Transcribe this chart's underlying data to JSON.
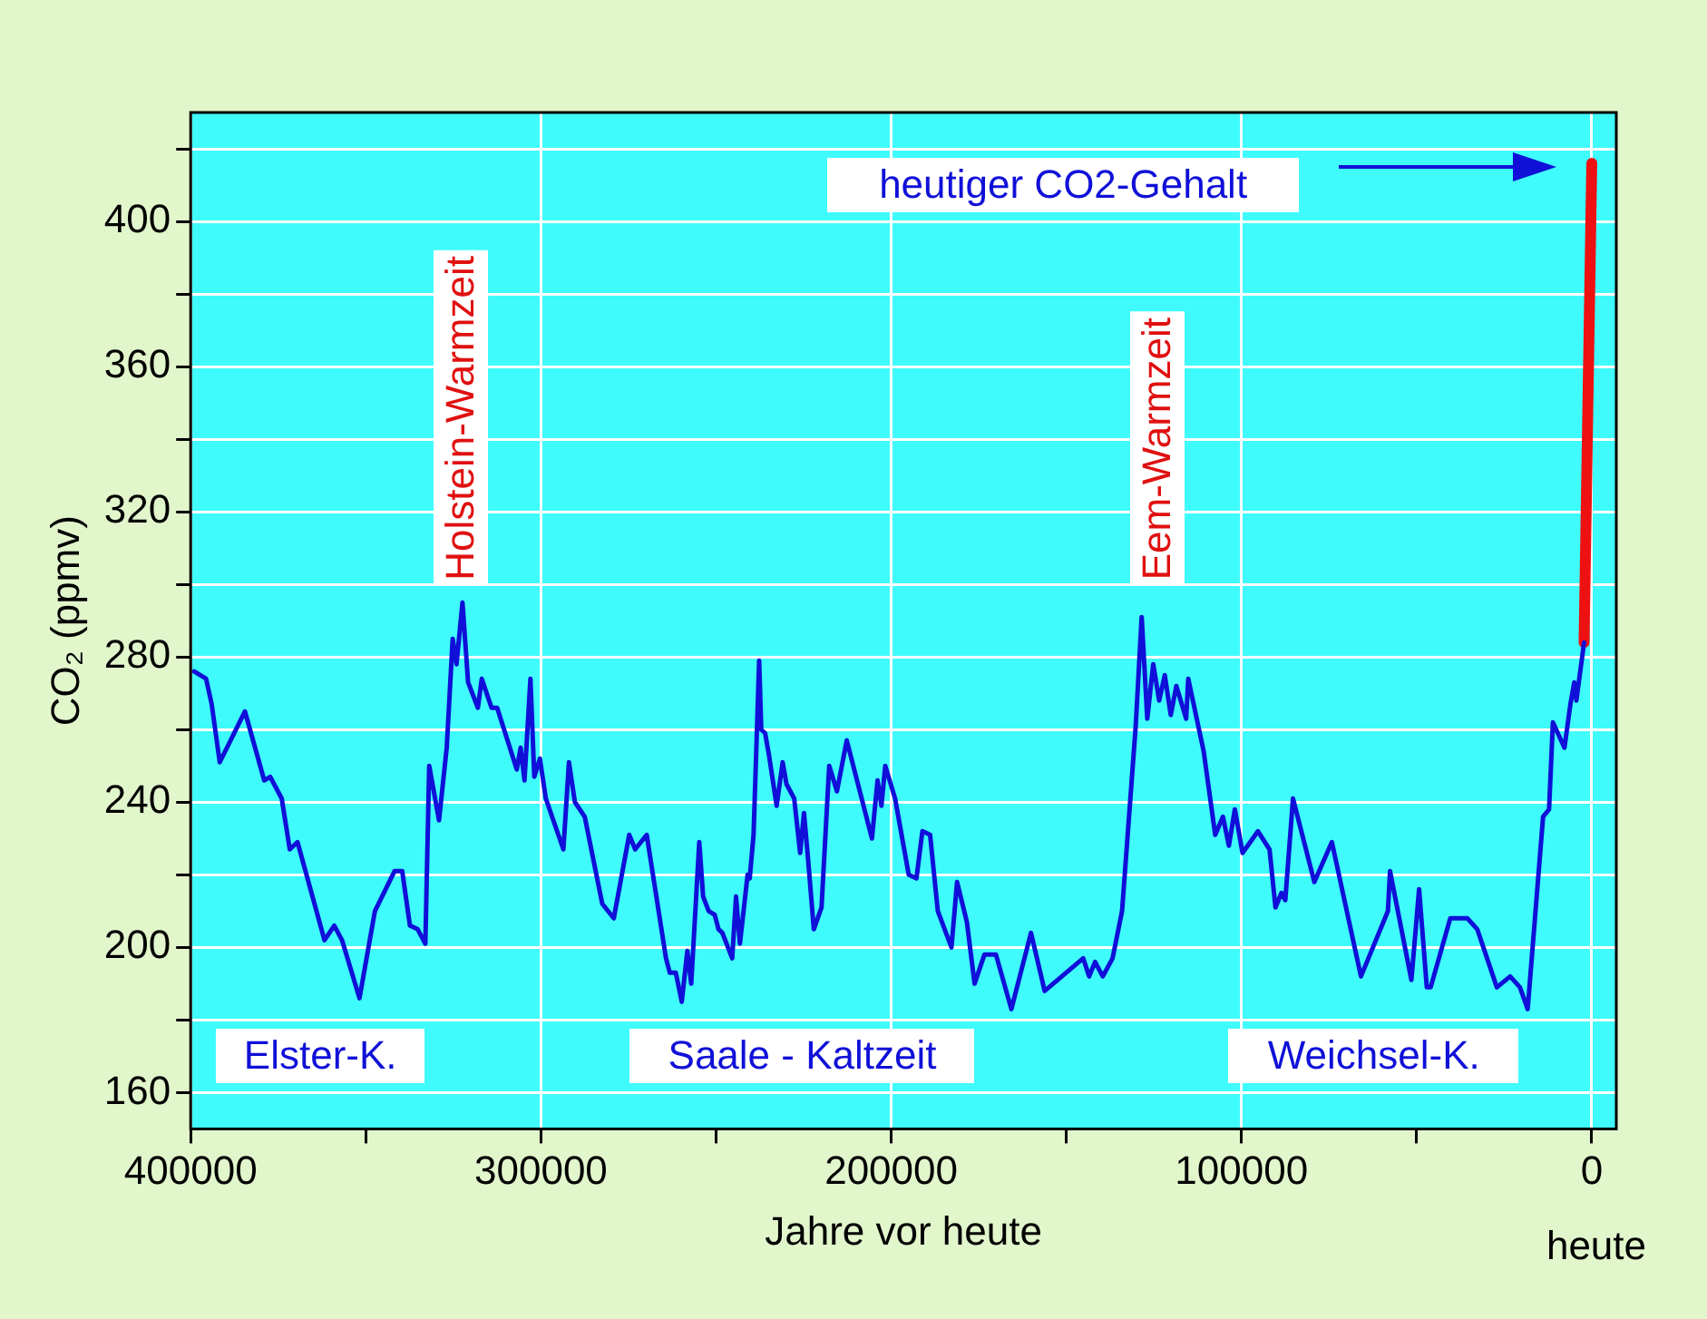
{
  "chart_data": {
    "type": "line",
    "xlabel": "Jahre vor heute",
    "ylabel": "CO₂ (ppmv)",
    "xlim": [
      400000,
      -7000
    ],
    "xticks": [
      400000,
      {
        "value": 350000,
        "label": null
      },
      300000,
      {
        "value": 250000,
        "label": null
      },
      200000,
      {
        "value": 150000,
        "label": null
      },
      100000,
      {
        "value": 50000,
        "label": null
      },
      0
    ],
    "ylim": [
      150,
      430
    ],
    "yticks": [
      160,
      {
        "value": 180,
        "label": null
      },
      200,
      {
        "value": 220,
        "label": null
      },
      240,
      {
        "value": 260,
        "label": null
      },
      280,
      {
        "value": 300,
        "label": null
      },
      320,
      {
        "value": 340,
        "label": null
      },
      360,
      {
        "value": 380,
        "label": null
      },
      400,
      {
        "value": 420,
        "label": null
      }
    ],
    "grid": true,
    "legend": false,
    "marker": "none",
    "line_style": "solid",
    "series": [
      {
        "color": "#1010d8",
        "x": [
          399000,
          395600,
          394000,
          391700,
          384500,
          379000,
          377300,
          374000,
          371700,
          369500,
          361800,
          359000,
          356800,
          351800,
          347400,
          341800,
          339600,
          337400,
          335200,
          333000,
          331900,
          329100,
          326900,
          325200,
          324100,
          322400,
          320800,
          318000,
          316900,
          314100,
          312500,
          306900,
          305800,
          304700,
          303000,
          301900,
          300300,
          298600,
          293600,
          292000,
          290300,
          287500,
          282500,
          279200,
          274800,
          273100,
          269800,
          264300,
          263200,
          261500,
          259800,
          258200,
          257100,
          254800,
          253700,
          252100,
          250400,
          249300,
          248200,
          245400,
          244300,
          243200,
          241000,
          240400,
          239300,
          237700,
          237100,
          236000,
          234900,
          232700,
          231000,
          229900,
          227700,
          226000,
          224900,
          223800,
          222100,
          219900,
          217700,
          215500,
          212700,
          205500,
          203900,
          202800,
          201700,
          198900,
          195000,
          192800,
          191100,
          188900,
          186700,
          182800,
          181200,
          178400,
          176200,
          173400,
          170100,
          165700,
          160100,
          156200,
          145200,
          143500,
          141800,
          139600,
          136800,
          134100,
          130200,
          128500,
          126900,
          125200,
          123500,
          121900,
          120200,
          118600,
          115800,
          115200,
          110800,
          107500,
          105300,
          103600,
          101900,
          99700,
          95300,
          92000,
          90300,
          88600,
          87500,
          85300,
          79200,
          74200,
          65900,
          58200,
          57600,
          51500,
          49300,
          47100,
          46000,
          40400,
          35500,
          32700,
          27100,
          23300,
          20500,
          18300,
          13900,
          12200,
          11100,
          7800,
          6100,
          5000,
          4400,
          2200
        ],
        "values": [
          276,
          274,
          267,
          251,
          265,
          246,
          247,
          241,
          227,
          229,
          202,
          206,
          202,
          186,
          210,
          221,
          221,
          206,
          205,
          201,
          250,
          235,
          255,
          285,
          278,
          295,
          273,
          266,
          274,
          266,
          266,
          249,
          255,
          246,
          274,
          247,
          252,
          241,
          227,
          251,
          240,
          236,
          212,
          208,
          231,
          227,
          231,
          197,
          193,
          193,
          185,
          199,
          190,
          229,
          214,
          210,
          209,
          205,
          204,
          197,
          214,
          201,
          220,
          219,
          231,
          279,
          260,
          259,
          253,
          239,
          251,
          245,
          241,
          226,
          237,
          225,
          205,
          211,
          250,
          243,
          257,
          230,
          246,
          239,
          250,
          241,
          220,
          219,
          232,
          231,
          210,
          200,
          218,
          207,
          190,
          198,
          198,
          183,
          204,
          188,
          197,
          192,
          196,
          192,
          197,
          210,
          261,
          291,
          263,
          278,
          268,
          275,
          264,
          272,
          263,
          274,
          254,
          231,
          236,
          228,
          238,
          226,
          232,
          227,
          211,
          215,
          213,
          241,
          218,
          229,
          192,
          210,
          221,
          191,
          216,
          189,
          189,
          208,
          208,
          205,
          189,
          192,
          189,
          183,
          236,
          238,
          262,
          255,
          267,
          273,
          268,
          284
        ]
      },
      {
        "color": "#ee1111",
        "x": [
          2200,
          0
        ],
        "values": [
          284,
          416
        ]
      }
    ],
    "annotations": [
      "Holstein-Warmzeit",
      "Eem-Warmzeit",
      "heutiger CO2-Gehalt",
      "Elster-K.",
      "Saale - Kaltzeit",
      "Weichsel-K.",
      "heute"
    ]
  }
}
